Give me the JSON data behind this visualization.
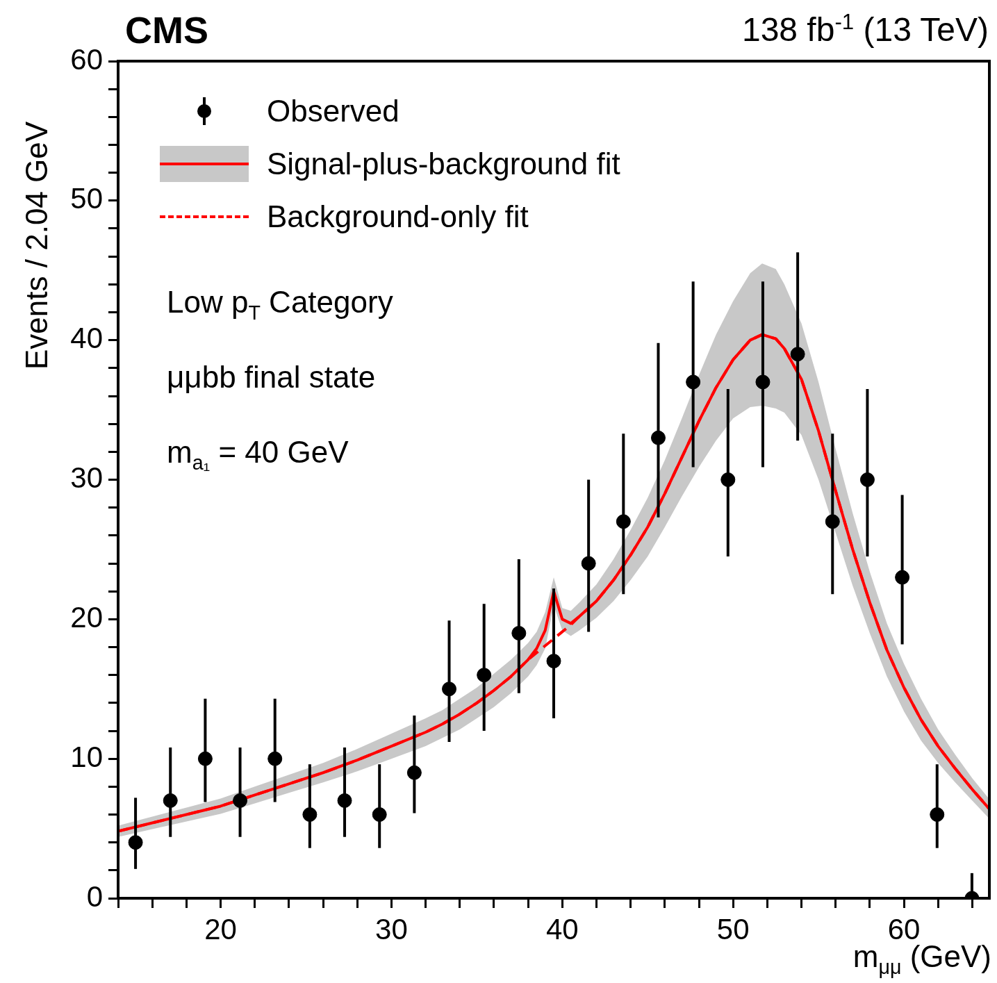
{
  "chart_data": {
    "type": "scatter",
    "title": "CMS",
    "subtitle": "138 fb$^{-1}$ (13 TeV)",
    "xlabel": "m$_{μμ}$ (GeV)",
    "ylabel": "Events / 2.04 GeV",
    "annotations": [
      "Low p$_{T}$ Category",
      "μμbb final state",
      "m$_{a₁}$ = 40 GeV"
    ],
    "xlim": [
      14,
      65
    ],
    "ylim": [
      0,
      60
    ],
    "xticks": [
      {
        "value": 14,
        "label": null
      },
      {
        "value": 16,
        "label": null
      },
      {
        "value": 18,
        "label": null
      },
      20,
      {
        "value": 22,
        "label": null
      },
      {
        "value": 24,
        "label": null
      },
      {
        "value": 26,
        "label": null
      },
      {
        "value": 28,
        "label": null
      },
      30,
      {
        "value": 32,
        "label": null
      },
      {
        "value": 34,
        "label": null
      },
      {
        "value": 36,
        "label": null
      },
      {
        "value": 38,
        "label": null
      },
      40,
      {
        "value": 42,
        "label": null
      },
      {
        "value": 44,
        "label": null
      },
      {
        "value": 46,
        "label": null
      },
      {
        "value": 48,
        "label": null
      },
      50,
      {
        "value": 52,
        "label": null
      },
      {
        "value": 54,
        "label": null
      },
      {
        "value": 56,
        "label": null
      },
      {
        "value": 58,
        "label": null
      },
      60,
      {
        "value": 62,
        "label": null
      },
      {
        "value": 64,
        "label": null
      }
    ],
    "yticks": [
      0,
      {
        "value": 2,
        "label": null
      },
      {
        "value": 4,
        "label": null
      },
      {
        "value": 6,
        "label": null
      },
      {
        "value": 8,
        "label": null
      },
      10,
      {
        "value": 12,
        "label": null
      },
      {
        "value": 14,
        "label": null
      },
      {
        "value": 16,
        "label": null
      },
      {
        "value": 18,
        "label": null
      },
      20,
      {
        "value": 22,
        "label": null
      },
      {
        "value": 24,
        "label": null
      },
      {
        "value": 26,
        "label": null
      },
      {
        "value": 28,
        "label": null
      },
      30,
      {
        "value": 32,
        "label": null
      },
      {
        "value": 34,
        "label": null
      },
      {
        "value": 36,
        "label": null
      },
      {
        "value": 38,
        "label": null
      },
      40,
      {
        "value": 42,
        "label": null
      },
      {
        "value": 44,
        "label": null
      },
      {
        "value": 46,
        "label": null
      },
      {
        "value": 48,
        "label": null
      },
      50,
      {
        "value": 52,
        "label": null
      },
      {
        "value": 54,
        "label": null
      },
      {
        "value": 56,
        "label": null
      },
      {
        "value": 58,
        "label": null
      },
      60
    ],
    "grid": false,
    "legend": "top left",
    "series": [
      {
        "name": "Observed",
        "type": "scatter",
        "marker": "circle",
        "color": "#000000",
        "x": [
          15.02,
          17.06,
          19.1,
          21.14,
          23.18,
          25.22,
          27.26,
          29.3,
          31.34,
          33.38,
          35.42,
          37.46,
          39.5,
          41.54,
          43.58,
          45.62,
          47.66,
          49.7,
          51.74,
          53.78,
          55.82,
          57.86,
          59.9,
          61.94,
          63.98
        ],
        "values": [
          4,
          7,
          10,
          7,
          10,
          6,
          7,
          6,
          9,
          15,
          16,
          19,
          17,
          24,
          27,
          33,
          37,
          30,
          37,
          39,
          27,
          30,
          23,
          6,
          0
        ],
        "errors": [
          [
            2.1,
            7.2
          ],
          [
            4.4,
            10.8
          ],
          [
            6.9,
            14.3
          ],
          [
            4.4,
            10.8
          ],
          [
            6.9,
            14.3
          ],
          [
            3.6,
            9.6
          ],
          [
            4.4,
            10.8
          ],
          [
            3.6,
            9.6
          ],
          [
            6.1,
            13.1
          ],
          [
            11.2,
            19.9
          ],
          [
            12.0,
            21.1
          ],
          [
            14.7,
            24.3
          ],
          [
            12.9,
            22.2
          ],
          [
            19.1,
            30.0
          ],
          [
            21.8,
            33.3
          ],
          [
            27.3,
            39.8
          ],
          [
            30.9,
            44.2
          ],
          [
            24.5,
            36.5
          ],
          [
            30.9,
            44.2
          ],
          [
            32.8,
            46.3
          ],
          [
            21.8,
            33.3
          ],
          [
            24.5,
            36.5
          ],
          [
            18.2,
            28.9
          ],
          [
            3.6,
            9.6
          ],
          [
            0,
            1.8
          ]
        ]
      },
      {
        "name": "Signal-plus-background fit",
        "type": "line",
        "color": "#ff0000",
        "line_style": "solid",
        "x": [
          14,
          16,
          18,
          20,
          22,
          24,
          26,
          28,
          30,
          32,
          33,
          34,
          35,
          36,
          37,
          38,
          38.5,
          39,
          39.5,
          40,
          40.5,
          41,
          42,
          43,
          44,
          45,
          46,
          47,
          48,
          49,
          50,
          51,
          51.7,
          52.5,
          53,
          54,
          55,
          56,
          57,
          58,
          59,
          60,
          61,
          62,
          63,
          64,
          65
        ],
        "values": [
          4.8,
          5.4,
          6.0,
          6.6,
          7.4,
          8.2,
          9.0,
          9.9,
          10.9,
          11.9,
          12.5,
          13.2,
          14.0,
          14.9,
          15.9,
          17.1,
          17.9,
          19.2,
          22.0,
          20.0,
          19.7,
          20.2,
          21.3,
          22.8,
          24.6,
          26.6,
          29.0,
          31.6,
          34.2,
          36.6,
          38.6,
          40.0,
          40.4,
          40.1,
          39.4,
          37.2,
          33.5,
          29.2,
          25.0,
          21.2,
          17.8,
          15.1,
          12.8,
          10.9,
          9.3,
          7.8,
          6.4
        ],
        "lower": [
          4.4,
          4.95,
          5.5,
          6.05,
          6.8,
          7.55,
          8.3,
          9.1,
          10.0,
          10.9,
          11.5,
          12.1,
          12.9,
          13.7,
          14.7,
          15.9,
          16.7,
          17.9,
          21.0,
          19.2,
          18.8,
          19.2,
          20.1,
          21.3,
          22.8,
          24.5,
          26.6,
          28.8,
          30.9,
          32.8,
          34.4,
          35.2,
          35.3,
          35.1,
          34.8,
          33.2,
          30.0,
          26.2,
          22.4,
          19.0,
          15.9,
          13.4,
          11.3,
          9.7,
          8.3,
          7.0,
          5.7
        ],
        "upper": [
          5.2,
          5.85,
          6.5,
          7.15,
          8.0,
          8.85,
          9.7,
          10.7,
          11.8,
          12.9,
          13.5,
          14.3,
          15.1,
          16.1,
          17.1,
          18.3,
          19.1,
          20.5,
          23.0,
          20.8,
          20.6,
          21.2,
          22.5,
          24.3,
          26.4,
          28.7,
          31.4,
          34.4,
          37.5,
          40.4,
          42.8,
          44.8,
          45.5,
          45.1,
          44.0,
          41.2,
          37.0,
          32.2,
          27.6,
          23.4,
          19.7,
          16.8,
          14.3,
          12.1,
          10.3,
          8.6,
          7.1
        ]
      },
      {
        "name": "Background-only fit",
        "type": "line",
        "color": "#ff0000",
        "line_style": "dashed",
        "x": [
          14,
          16,
          18,
          20,
          22,
          24,
          26,
          28,
          30,
          32,
          33,
          34,
          35,
          36,
          37,
          38,
          38.5,
          39,
          39.5,
          40,
          40.5,
          41,
          42,
          43,
          44,
          45,
          46,
          47,
          48,
          49,
          50,
          51,
          51.7,
          52.5,
          53,
          54,
          55,
          56,
          57,
          58,
          59,
          60,
          61,
          62,
          63,
          64,
          65
        ],
        "values": [
          4.8,
          5.4,
          6.0,
          6.6,
          7.4,
          8.2,
          9.0,
          9.9,
          10.9,
          11.9,
          12.5,
          13.2,
          14.0,
          14.9,
          15.9,
          17.1,
          17.6,
          18.1,
          18.6,
          19.1,
          19.6,
          20.2,
          21.3,
          22.8,
          24.6,
          26.6,
          29.0,
          31.6,
          34.2,
          36.6,
          38.6,
          40.0,
          40.4,
          40.1,
          39.4,
          37.2,
          33.5,
          29.2,
          25.0,
          21.2,
          17.8,
          15.1,
          12.8,
          10.9,
          9.3,
          7.8,
          6.4
        ]
      }
    ]
  }
}
